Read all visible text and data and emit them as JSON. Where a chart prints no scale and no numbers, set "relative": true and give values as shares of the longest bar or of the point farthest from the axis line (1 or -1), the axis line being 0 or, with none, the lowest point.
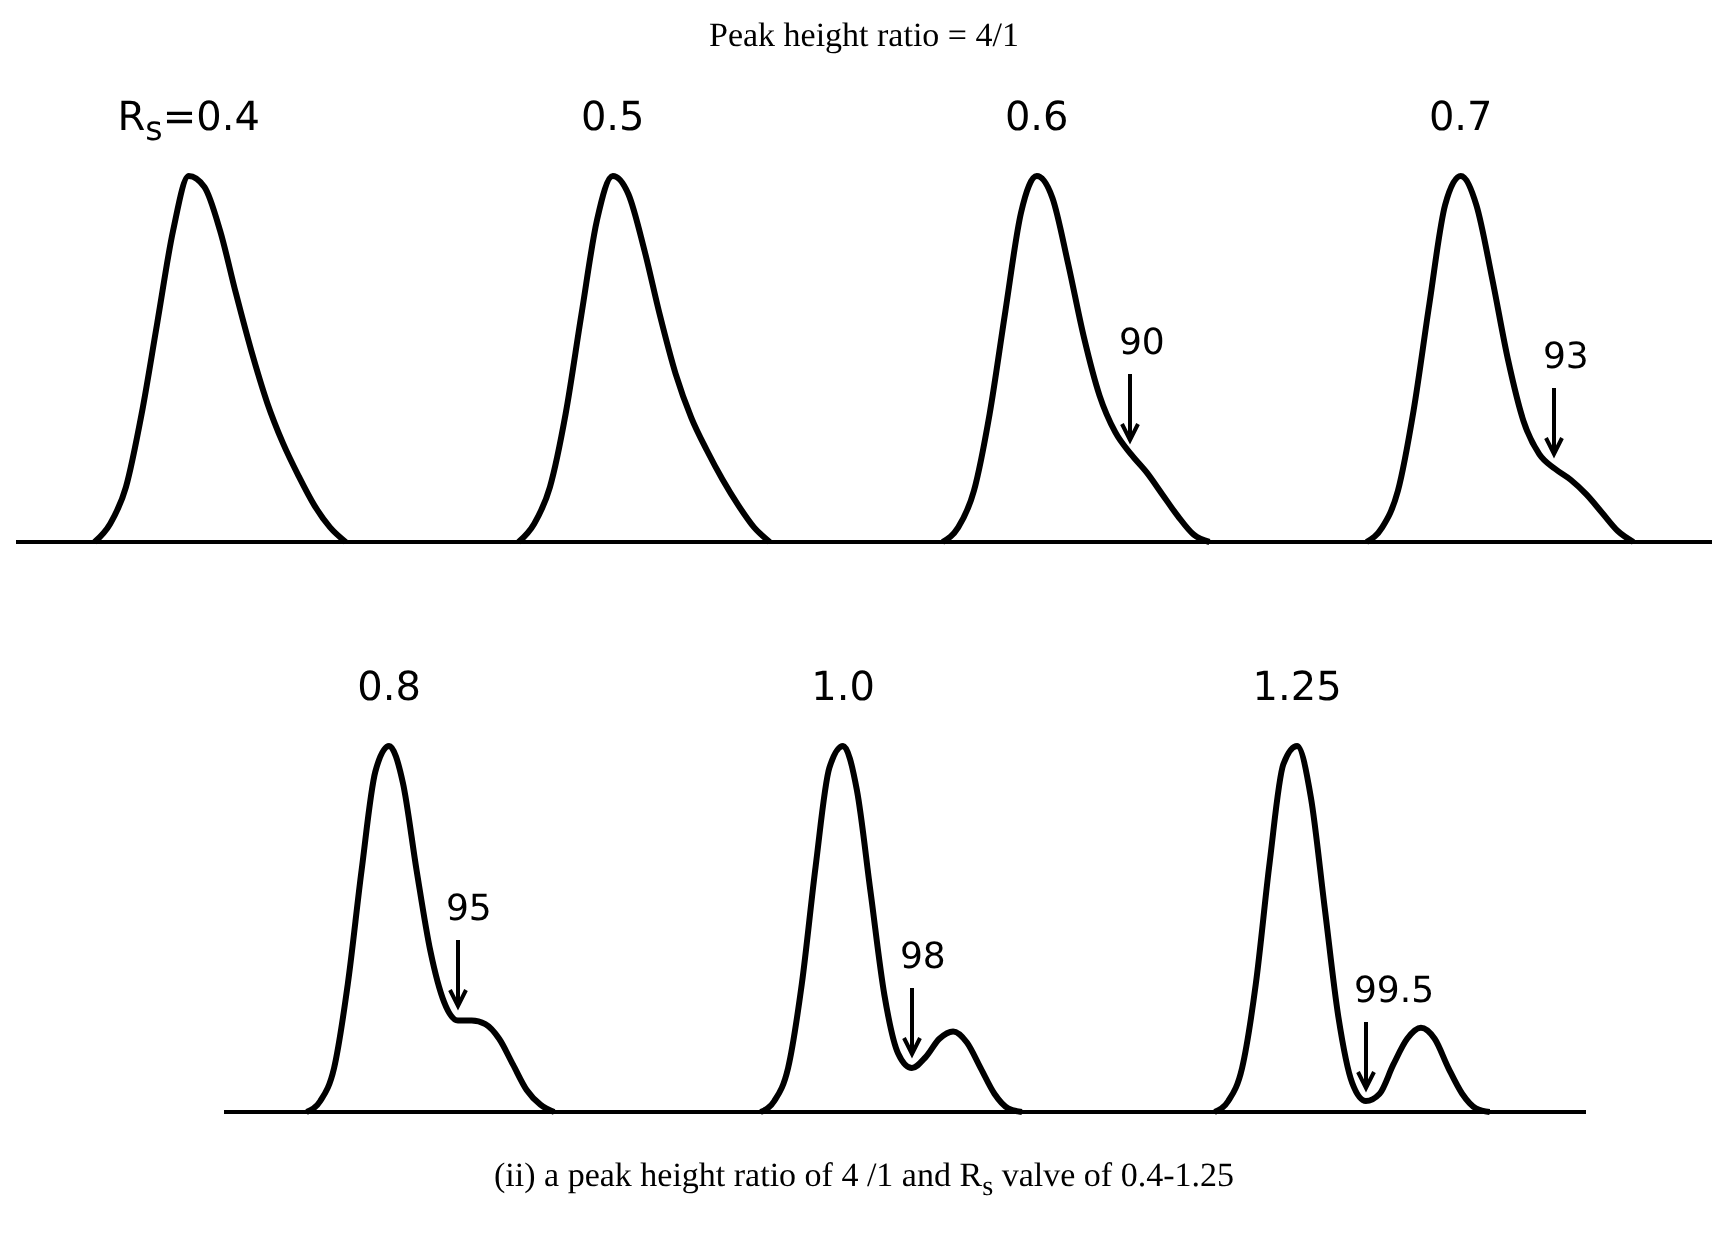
{
  "chart_data": [
    {
      "type": "line",
      "relative": true,
      "title": "R$_{s}$=0.4",
      "color": "#000000",
      "annotations": [
        "Peak height ratio = 4/1"
      ],
      "categories": [
        null,
        null,
        null,
        null,
        null,
        null,
        null,
        null,
        null,
        null,
        null,
        null,
        null,
        null,
        null,
        null,
        null,
        null,
        null,
        null,
        null,
        null,
        null,
        null,
        null,
        null,
        null,
        null
      ],
      "values": [
        null,
        null,
        null,
        null,
        null,
        0,
        0.05,
        0.15,
        0.35,
        0.6,
        0.85,
        1.0,
        0.97,
        0.85,
        0.68,
        0.52,
        0.38,
        0.27,
        0.18,
        0.1,
        0.04,
        0,
        null,
        null,
        null,
        null,
        null,
        null
      ]
    },
    {
      "type": "line",
      "relative": true,
      "title": "0.5",
      "color": "#000000",
      "categories": [
        null,
        null,
        null,
        null,
        null,
        null,
        null,
        null,
        null,
        null,
        null,
        null,
        null,
        null,
        null,
        null,
        null,
        null,
        null,
        null,
        null,
        null,
        null,
        null,
        null,
        null,
        null,
        null
      ],
      "values": [
        null,
        null,
        null,
        null,
        null,
        0,
        0.05,
        0.15,
        0.35,
        0.62,
        0.88,
        1.0,
        0.95,
        0.8,
        0.62,
        0.46,
        0.34,
        0.25,
        0.17,
        0.1,
        0.04,
        0,
        null,
        null,
        null,
        null,
        null,
        null
      ]
    },
    {
      "type": "line",
      "relative": true,
      "title": "0.6",
      "color": "#000000",
      "annotations": [
        "90"
      ],
      "categories": [
        null,
        null,
        null,
        null,
        null,
        null,
        null,
        null,
        null,
        null,
        null,
        null,
        null,
        null,
        null,
        null,
        null,
        null,
        null,
        null,
        null,
        null,
        null,
        null,
        null,
        null,
        null,
        null
      ],
      "values": [
        null,
        null,
        null,
        null,
        null,
        0,
        0.04,
        0.14,
        0.35,
        0.63,
        0.9,
        1.0,
        0.94,
        0.76,
        0.56,
        0.4,
        0.3,
        0.24,
        0.19,
        0.13,
        0.07,
        0.02,
        0,
        null,
        null,
        null,
        null,
        null
      ]
    },
    {
      "type": "line",
      "relative": true,
      "title": "0.7",
      "color": "#000000",
      "annotations": [
        "93"
      ],
      "categories": [
        null,
        null,
        null,
        null,
        null,
        null,
        null,
        null,
        null,
        null,
        null,
        null,
        null,
        null,
        null,
        null,
        null,
        null,
        null,
        null,
        null,
        null,
        null,
        null,
        null,
        null,
        null,
        null
      ],
      "values": [
        null,
        null,
        null,
        null,
        null,
        0,
        0.04,
        0.14,
        0.36,
        0.65,
        0.92,
        1.0,
        0.92,
        0.72,
        0.5,
        0.33,
        0.24,
        0.2,
        0.17,
        0.13,
        0.08,
        0.03,
        0,
        null,
        null,
        null,
        null,
        null
      ]
    },
    {
      "type": "line",
      "relative": true,
      "title": "0.8",
      "color": "#000000",
      "annotations": [
        "95"
      ],
      "categories": [
        null,
        null,
        null,
        null,
        null,
        null,
        null,
        null,
        null,
        null,
        null,
        null,
        null,
        null,
        null,
        null,
        null,
        null,
        null,
        null,
        null,
        null,
        null,
        null,
        null,
        null,
        null,
        null,
        null,
        null,
        null,
        null,
        null,
        null
      ],
      "values": [
        null,
        null,
        null,
        null,
        null,
        null,
        0,
        0.03,
        0.12,
        0.35,
        0.66,
        0.93,
        1.0,
        0.9,
        0.66,
        0.44,
        0.3,
        0.25,
        0.25,
        0.24,
        0.2,
        0.13,
        0.06,
        0.02,
        0,
        null,
        null,
        null,
        null,
        null,
        null,
        null,
        null,
        null
      ]
    },
    {
      "type": "line",
      "relative": true,
      "title": "1.0",
      "color": "#000000",
      "annotations": [
        "98"
      ],
      "categories": [
        null,
        null,
        null,
        null,
        null,
        null,
        null,
        null,
        null,
        null,
        null,
        null,
        null,
        null,
        null,
        null,
        null,
        null,
        null,
        null,
        null,
        null,
        null,
        null,
        null,
        null,
        null,
        null,
        null,
        null,
        null,
        null,
        null,
        null
      ],
      "values": [
        null,
        null,
        null,
        null,
        null,
        null,
        0,
        0.03,
        0.12,
        0.35,
        0.67,
        0.94,
        1.0,
        0.88,
        0.6,
        0.32,
        0.16,
        0.12,
        0.15,
        0.2,
        0.22,
        0.19,
        0.12,
        0.05,
        0.01,
        0,
        null,
        null,
        null,
        null,
        null,
        null,
        null,
        null
      ]
    },
    {
      "type": "line",
      "relative": true,
      "title": "1.25",
      "color": "#000000",
      "annotations": [
        "99.5",
        "(ii) a peak height ratio of 4 /1 and R$_{s}$ valve of 0.4-1.25"
      ],
      "categories": [
        null,
        null,
        null,
        null,
        null,
        null,
        null,
        null,
        null,
        null,
        null,
        null,
        null,
        null,
        null,
        null,
        null,
        null,
        null,
        null,
        null,
        null,
        null,
        null,
        null,
        null,
        null,
        null,
        null,
        null,
        null,
        null,
        null,
        null
      ],
      "values": [
        null,
        null,
        null,
        null,
        null,
        null,
        0,
        0.03,
        0.12,
        0.35,
        0.68,
        0.95,
        1.0,
        0.86,
        0.56,
        0.26,
        0.08,
        0.03,
        0.05,
        0.13,
        0.2,
        0.23,
        0.2,
        0.12,
        0.05,
        0.01,
        0,
        null,
        null,
        null,
        null,
        null,
        null,
        null
      ]
    }
  ]
}
